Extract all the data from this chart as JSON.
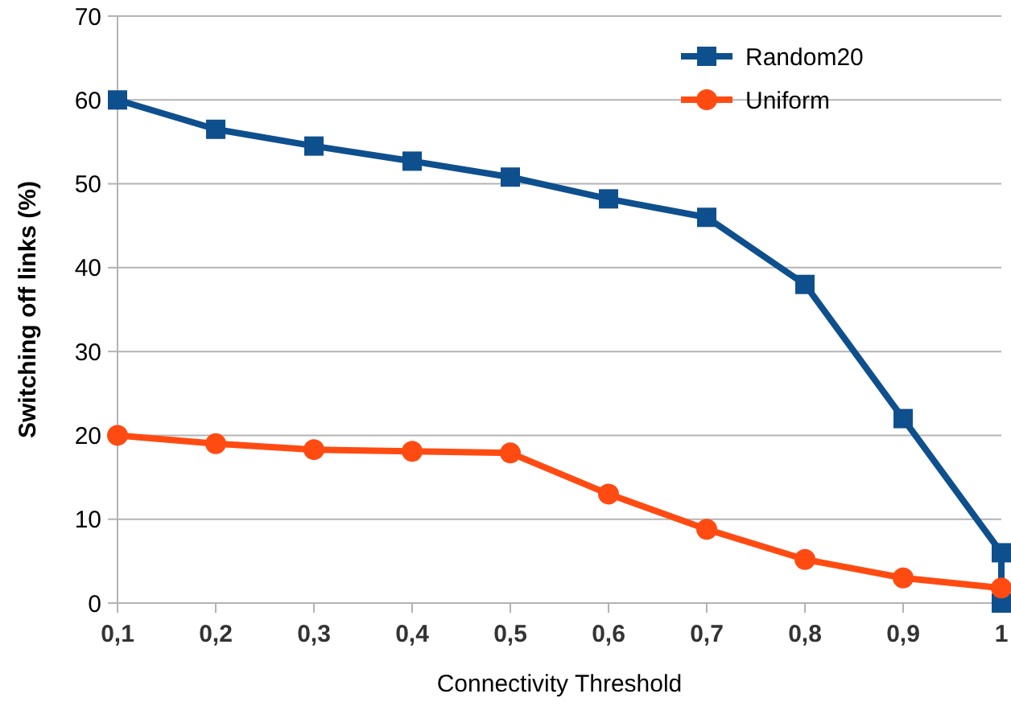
{
  "chart_data": {
    "type": "line",
    "xlabel": "Connectivity Threshold",
    "ylabel": "Switching off links (%)",
    "xlim": [
      0.1,
      1
    ],
    "xticks": [
      {
        "value": 0.1,
        "label": "0,1"
      },
      {
        "value": 0.2,
        "label": "0,2"
      },
      {
        "value": 0.3,
        "label": "0,3"
      },
      {
        "value": 0.4,
        "label": "0,4"
      },
      {
        "value": 0.5,
        "label": "0,5"
      },
      {
        "value": 0.6,
        "label": "0,6"
      },
      {
        "value": 0.7,
        "label": "0,7"
      },
      {
        "value": 0.8,
        "label": "0,8"
      },
      {
        "value": 0.9,
        "label": "0,9"
      },
      {
        "value": 1,
        "label": "1"
      }
    ],
    "ylim": [
      0,
      70
    ],
    "yticks": [
      0,
      10,
      20,
      30,
      40,
      50,
      60,
      70
    ],
    "grid": "y",
    "legend": "top right",
    "series": [
      {
        "name": "Random20",
        "color": "#0e4f8e",
        "marker": "square",
        "x": [
          0.1,
          0.2,
          0.3,
          0.4,
          0.5,
          0.6,
          0.7,
          0.8,
          0.9,
          1,
          1
        ],
        "values": [
          60,
          56.5,
          54.5,
          52.7,
          50.8,
          48.2,
          46,
          38,
          22,
          6,
          0
        ]
      },
      {
        "name": "Uniform",
        "color": "#ff4b12",
        "marker": "circle",
        "x": [
          0.1,
          0.2,
          0.3,
          0.4,
          0.5,
          0.6,
          0.7,
          0.8,
          0.9,
          1
        ],
        "values": [
          20,
          19,
          18.3,
          18.1,
          17.9,
          13,
          8.8,
          5.2,
          3,
          1.8
        ]
      }
    ]
  }
}
